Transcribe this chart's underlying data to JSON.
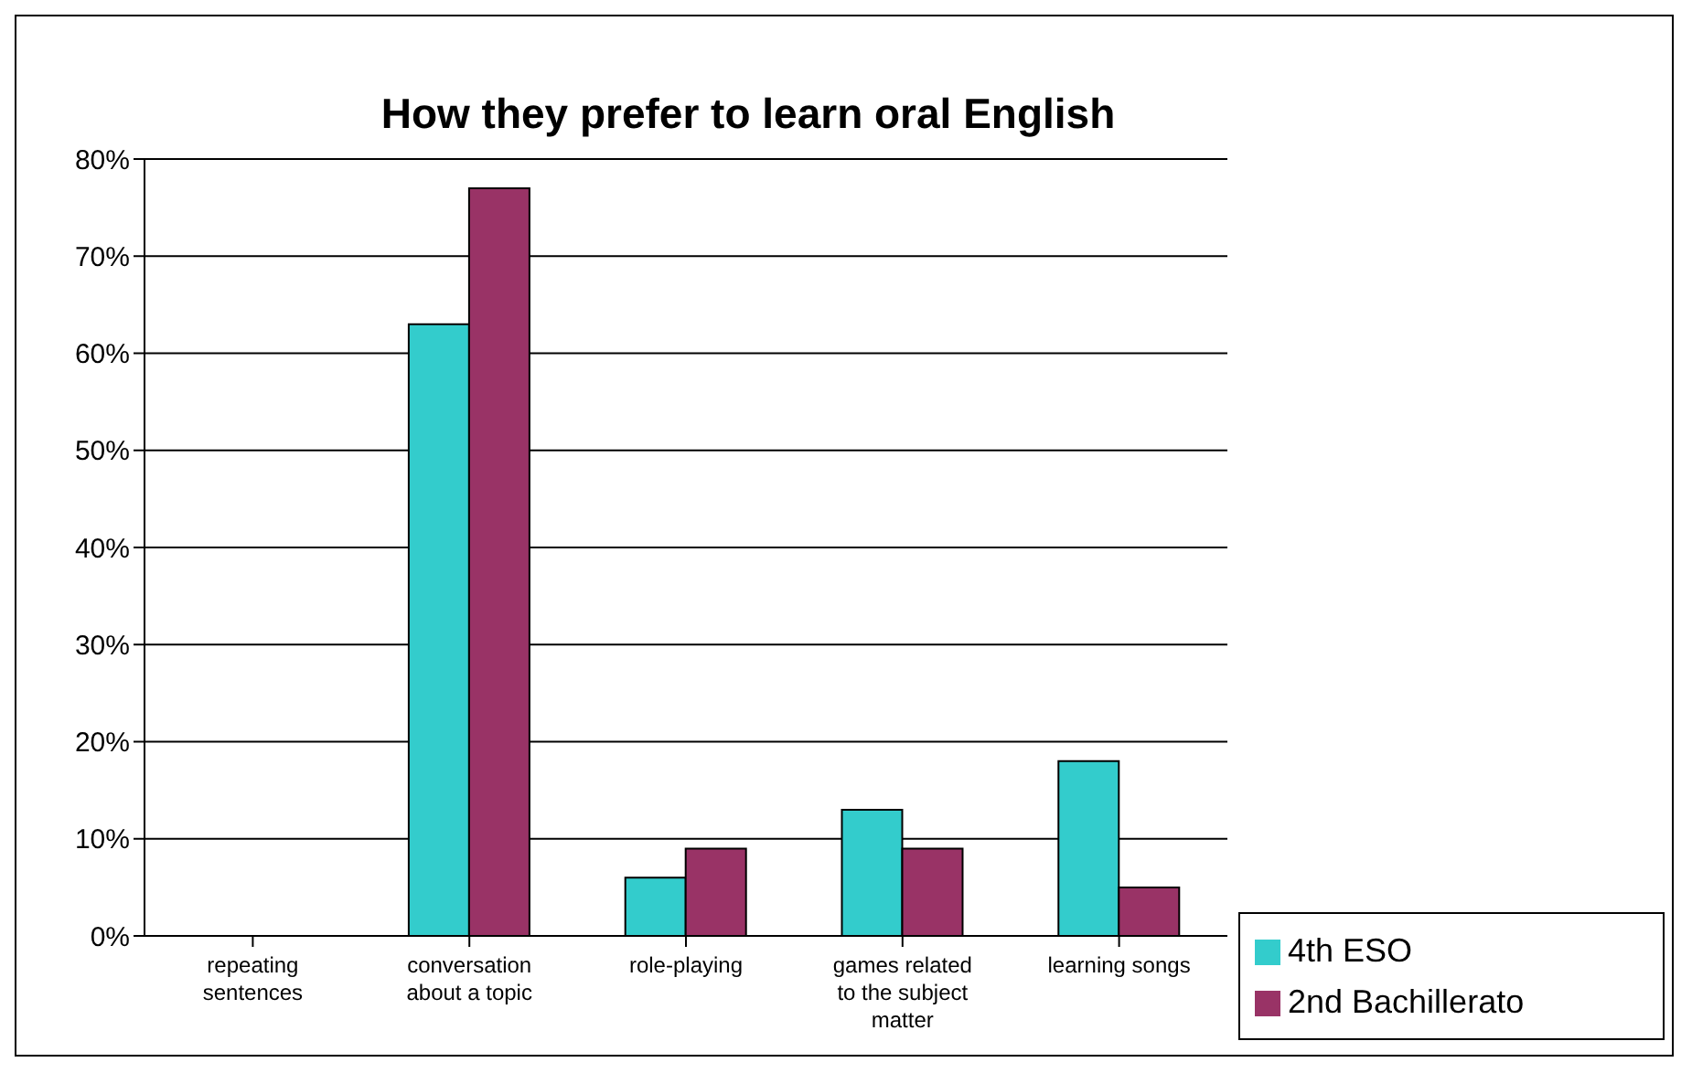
{
  "chart_data": {
    "type": "bar",
    "title": "How they prefer to learn oral English",
    "categories": [
      "repeating sentences",
      "conversation about a topic",
      "role-playing",
      "games related to the subject matter",
      "learning songs"
    ],
    "series": [
      {
        "name": "4th ESO",
        "color": "#33cccc",
        "values": [
          0,
          63,
          6,
          13,
          18
        ]
      },
      {
        "name": "2nd Bachillerato",
        "color": "#993366",
        "values": [
          0,
          77,
          9,
          9,
          5
        ]
      }
    ],
    "ylim": [
      0,
      80
    ],
    "yticks": [
      {
        "value": 0,
        "label": "0%"
      },
      {
        "value": 10,
        "label": "10%"
      },
      {
        "value": 20,
        "label": "20%"
      },
      {
        "value": 30,
        "label": "30%"
      },
      {
        "value": 40,
        "label": "40%"
      },
      {
        "value": 50,
        "label": "50%"
      },
      {
        "value": 60,
        "label": "60%"
      },
      {
        "value": 70,
        "label": "70%"
      },
      {
        "value": 80,
        "label": "80%"
      }
    ],
    "grid": "y",
    "legend": "bottom right"
  }
}
